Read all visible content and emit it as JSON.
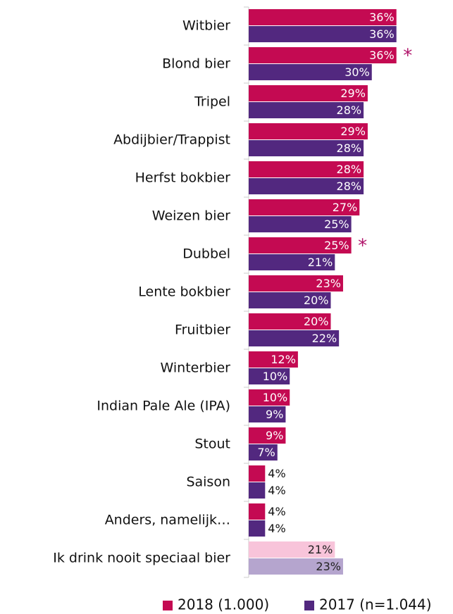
{
  "chart_data": {
    "type": "bar",
    "orientation": "horizontal",
    "categories": [
      "Witbier",
      "Blond bier",
      "Tripel",
      "Abdijbier/Trappist",
      "Herfst bokbier",
      "Weizen bier",
      "Dubbel",
      "Lente bokbier",
      "Fruitbier",
      "Winterbier",
      "Indian Pale Ale (IPA)",
      "Stout",
      "Saison",
      "Anders, namelijk…",
      "Ik drink nooit speciaal bier"
    ],
    "series": [
      {
        "name": "2018 (1.000)",
        "color": "#c40a52",
        "colors": [
          "#c40a52",
          "#c40a52",
          "#c40a52",
          "#c40a52",
          "#c40a52",
          "#c40a52",
          "#c40a52",
          "#c40a52",
          "#c40a52",
          "#c40a52",
          "#c40a52",
          "#c40a52",
          "#c40a52",
          "#c40a52",
          "#f8c4da"
        ],
        "values": [
          36,
          36,
          29,
          29,
          28,
          27,
          25,
          23,
          20,
          12,
          10,
          9,
          4,
          4,
          21
        ],
        "value_labels": [
          "36%",
          "36%",
          "29%",
          "29%",
          "28%",
          "27%",
          "25%",
          "23%",
          "20%",
          "12%",
          "10%",
          "9%",
          "4%",
          "4%",
          "21%"
        ]
      },
      {
        "name": "2017 (n=1.044)",
        "color": "#52287f",
        "colors": [
          "#52287f",
          "#52287f",
          "#52287f",
          "#52287f",
          "#52287f",
          "#52287f",
          "#52287f",
          "#52287f",
          "#52287f",
          "#52287f",
          "#52287f",
          "#52287f",
          "#52287f",
          "#52287f",
          "#b5a5ce"
        ],
        "values": [
          36,
          30,
          28,
          28,
          28,
          25,
          21,
          20,
          22,
          10,
          9,
          7,
          4,
          4,
          23
        ],
        "value_labels": [
          "36%",
          "30%",
          "28%",
          "28%",
          "28%",
          "25%",
          "21%",
          "20%",
          "22%",
          "10%",
          "9%",
          "7%",
          "4%",
          "4%",
          "23%"
        ]
      }
    ],
    "annotations": [
      {
        "text": "*",
        "category": "Blond bier",
        "series": 0
      },
      {
        "text": "*",
        "category": "Dubbel",
        "series": 0
      }
    ],
    "xlim": [
      0,
      40
    ],
    "legend": "bottom"
  }
}
